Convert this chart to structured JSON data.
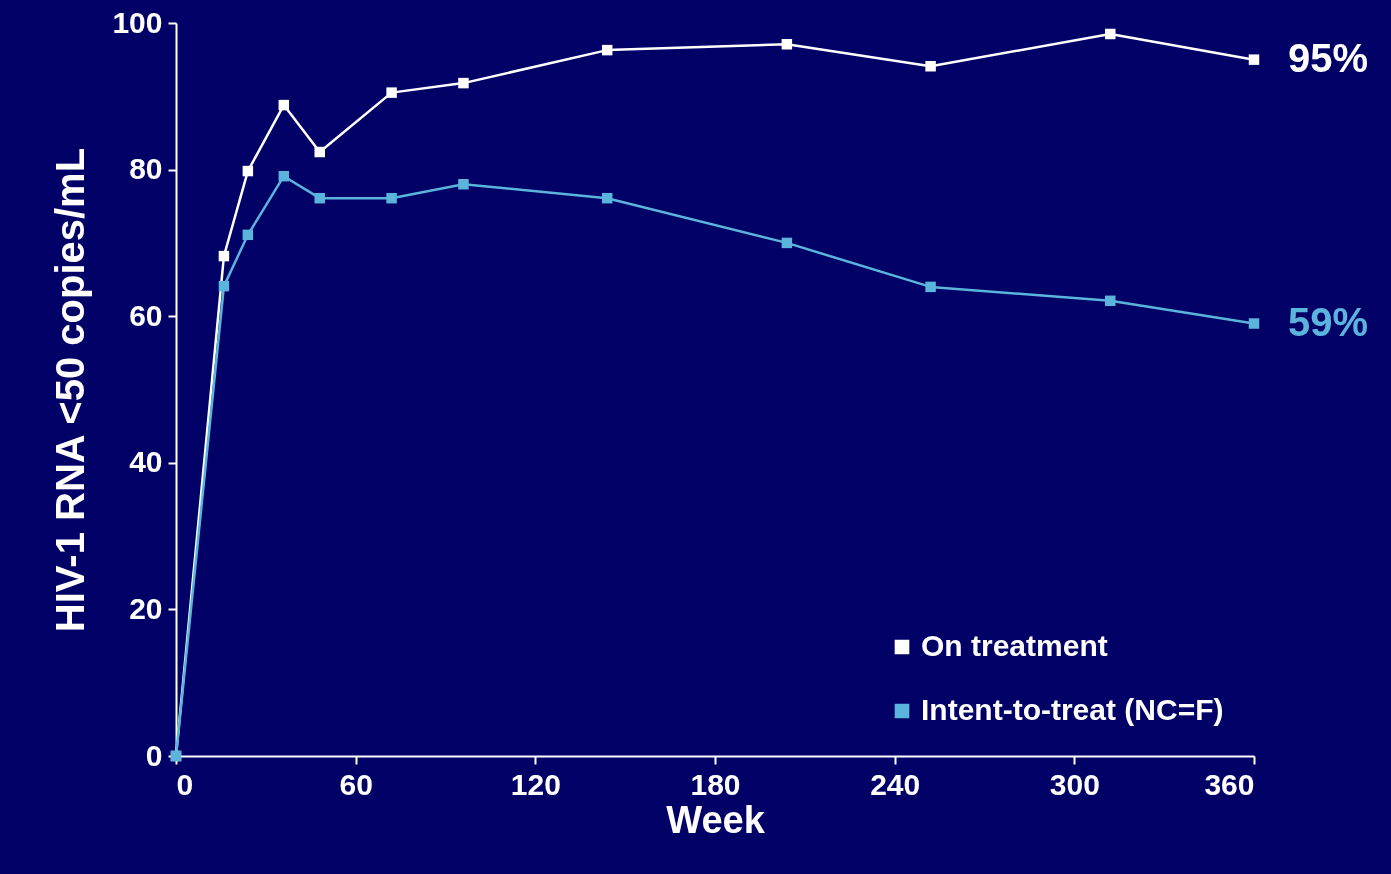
{
  "chart_data": {
    "type": "line",
    "xlabel": "Week",
    "ylabel": "HIV-1 RNA <50 copies/mL",
    "xlim": [
      0,
      360
    ],
    "xticks": [
      0,
      60,
      120,
      180,
      240,
      300,
      360
    ],
    "ylim": [
      0,
      100
    ],
    "yticks": [
      0,
      20,
      40,
      60,
      80,
      100
    ],
    "grid": false,
    "legend": "bottom right",
    "marker": "square",
    "line_style": "solid",
    "series": [
      {
        "name": "On treatment",
        "color": "#ffffff",
        "x": [
          0,
          16,
          24,
          36,
          48,
          72,
          96,
          144,
          204,
          252,
          312,
          360
        ],
        "values": [
          0,
          68.2,
          79.8,
          88.8,
          82.4,
          90.5,
          91.8,
          96.3,
          97.1,
          94.1,
          98.5,
          95
        ]
      },
      {
        "name": "Intent-to-treat (NC=F)",
        "color": "#5ab4dc",
        "x": [
          0,
          16,
          24,
          36,
          48,
          72,
          96,
          144,
          204,
          252,
          312,
          360
        ],
        "values": [
          0,
          64.1,
          71.1,
          79.1,
          76.1,
          76.1,
          78,
          76.1,
          70,
          64,
          62.1,
          59
        ]
      }
    ],
    "annotations": [
      {
        "text": "95%",
        "x": 360,
        "y": 95
      },
      {
        "text": "59%",
        "x": 360,
        "y": 59
      }
    ]
  }
}
